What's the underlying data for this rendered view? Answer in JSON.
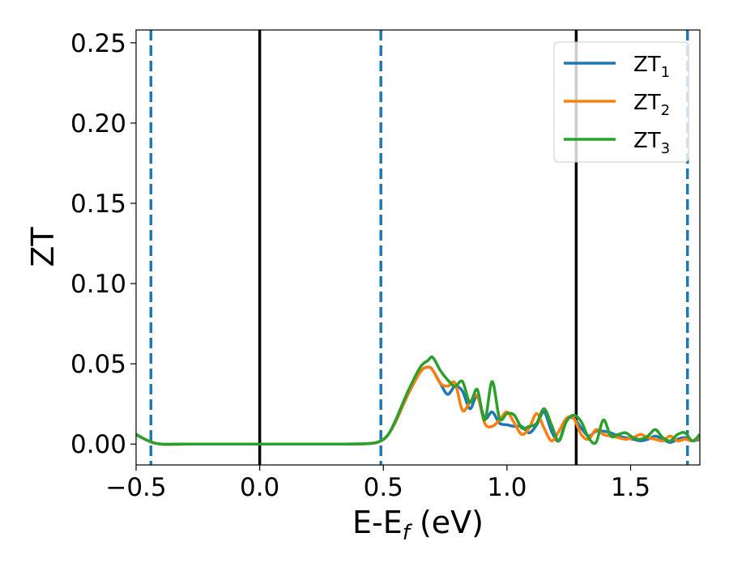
{
  "chart_data": {
    "type": "line",
    "title": "",
    "xlabel": "E-E",
    "xlabel_sub": "f",
    "xlabel_unit": " (eV)",
    "ylabel": "ZT",
    "xlim": [
      -0.5,
      1.78
    ],
    "ylim": [
      -0.013,
      0.258
    ],
    "xticks": [
      -0.5,
      0.0,
      0.5,
      1.0,
      1.5
    ],
    "xtick_labels": [
      "−0.5",
      "0.0",
      "0.5",
      "1.0",
      "1.5"
    ],
    "yticks": [
      0.0,
      0.05,
      0.1,
      0.15,
      0.2,
      0.25
    ],
    "ytick_labels": [
      "0.00",
      "0.05",
      "0.10",
      "0.15",
      "0.20",
      "0.25"
    ],
    "grid": false,
    "legend_position": "top-right",
    "vlines": [
      {
        "x": 0.0,
        "style": "solid",
        "color": "#000000"
      },
      {
        "x": 1.28,
        "style": "solid",
        "color": "#000000"
      },
      {
        "x": -0.44,
        "style": "dashed",
        "color": "#1f77b4"
      },
      {
        "x": 0.49,
        "style": "dashed",
        "color": "#1f77b4"
      },
      {
        "x": 1.73,
        "style": "dashed",
        "color": "#1f77b4"
      }
    ],
    "series": [
      {
        "name": "ZT",
        "sub": "1",
        "color": "#1f77b4",
        "x": [
          -0.5,
          -0.45,
          -0.4,
          -0.3,
          0.0,
          0.3,
          0.44,
          0.49,
          0.52,
          0.55,
          0.6,
          0.65,
          0.68,
          0.7,
          0.73,
          0.76,
          0.79,
          0.82,
          0.85,
          0.88,
          0.91,
          0.94,
          0.97,
          1.0,
          1.03,
          1.06,
          1.09,
          1.12,
          1.15,
          1.18,
          1.21,
          1.24,
          1.27,
          1.3,
          1.33,
          1.36,
          1.39,
          1.42,
          1.45,
          1.48,
          1.51,
          1.54,
          1.57,
          1.6,
          1.63,
          1.66,
          1.69,
          1.72,
          1.75,
          1.78
        ],
        "y": [
          0.006,
          0.002,
          0.0,
          0.0,
          0.0,
          0.0,
          0.0003,
          0.002,
          0.006,
          0.014,
          0.031,
          0.045,
          0.048,
          0.046,
          0.038,
          0.031,
          0.036,
          0.033,
          0.022,
          0.03,
          0.016,
          0.02,
          0.013,
          0.012,
          0.011,
          0.011,
          0.007,
          0.012,
          0.02,
          0.008,
          0.002,
          0.015,
          0.016,
          0.01,
          0.005,
          0.008,
          0.008,
          0.007,
          0.005,
          0.004,
          0.003,
          0.002,
          0.003,
          0.005,
          0.003,
          0.001,
          0.003,
          0.004,
          0.002,
          0.003
        ]
      },
      {
        "name": "ZT",
        "sub": "2",
        "color": "#ff7f0e",
        "x": [
          -0.5,
          -0.45,
          -0.4,
          -0.3,
          0.0,
          0.3,
          0.44,
          0.49,
          0.52,
          0.55,
          0.6,
          0.65,
          0.68,
          0.7,
          0.73,
          0.76,
          0.79,
          0.82,
          0.85,
          0.88,
          0.91,
          0.94,
          0.97,
          1.0,
          1.03,
          1.06,
          1.09,
          1.12,
          1.15,
          1.18,
          1.21,
          1.24,
          1.27,
          1.3,
          1.33,
          1.36,
          1.39,
          1.42,
          1.45,
          1.48,
          1.51,
          1.54,
          1.57,
          1.6,
          1.63,
          1.66,
          1.69,
          1.72,
          1.75,
          1.78
        ],
        "y": [
          0.006,
          0.002,
          0.0,
          0.0,
          0.0,
          0.0,
          0.0003,
          0.002,
          0.006,
          0.014,
          0.031,
          0.045,
          0.048,
          0.046,
          0.038,
          0.036,
          0.038,
          0.021,
          0.026,
          0.03,
          0.013,
          0.011,
          0.015,
          0.02,
          0.013,
          0.006,
          0.01,
          0.019,
          0.01,
          0.002,
          0.008,
          0.016,
          0.016,
          0.006,
          0.003,
          0.009,
          0.006,
          0.005,
          0.004,
          0.003,
          0.004,
          0.006,
          0.004,
          0.003,
          0.002,
          0.005,
          0.002,
          0.003,
          0.002,
          0.004
        ]
      },
      {
        "name": "ZT",
        "sub": "3",
        "color": "#2ca02c",
        "x": [
          -0.5,
          -0.45,
          -0.4,
          -0.3,
          0.0,
          0.3,
          0.44,
          0.49,
          0.52,
          0.55,
          0.6,
          0.65,
          0.68,
          0.7,
          0.73,
          0.76,
          0.79,
          0.82,
          0.85,
          0.88,
          0.91,
          0.94,
          0.97,
          1.0,
          1.03,
          1.06,
          1.09,
          1.12,
          1.15,
          1.18,
          1.21,
          1.24,
          1.27,
          1.3,
          1.33,
          1.36,
          1.39,
          1.42,
          1.45,
          1.48,
          1.51,
          1.54,
          1.57,
          1.6,
          1.63,
          1.66,
          1.69,
          1.72,
          1.75,
          1.78
        ],
        "y": [
          0.006,
          0.002,
          0.0,
          0.0,
          0.0,
          0.0,
          0.0003,
          0.002,
          0.006,
          0.015,
          0.033,
          0.048,
          0.052,
          0.054,
          0.046,
          0.04,
          0.036,
          0.039,
          0.026,
          0.034,
          0.015,
          0.039,
          0.016,
          0.019,
          0.018,
          0.01,
          0.011,
          0.013,
          0.022,
          0.012,
          0.002,
          0.014,
          0.018,
          0.014,
          0.004,
          0.001,
          0.015,
          0.005,
          0.006,
          0.007,
          0.004,
          0.003,
          0.005,
          0.009,
          0.004,
          0.002,
          0.006,
          0.007,
          0.002,
          0.006
        ]
      }
    ]
  }
}
